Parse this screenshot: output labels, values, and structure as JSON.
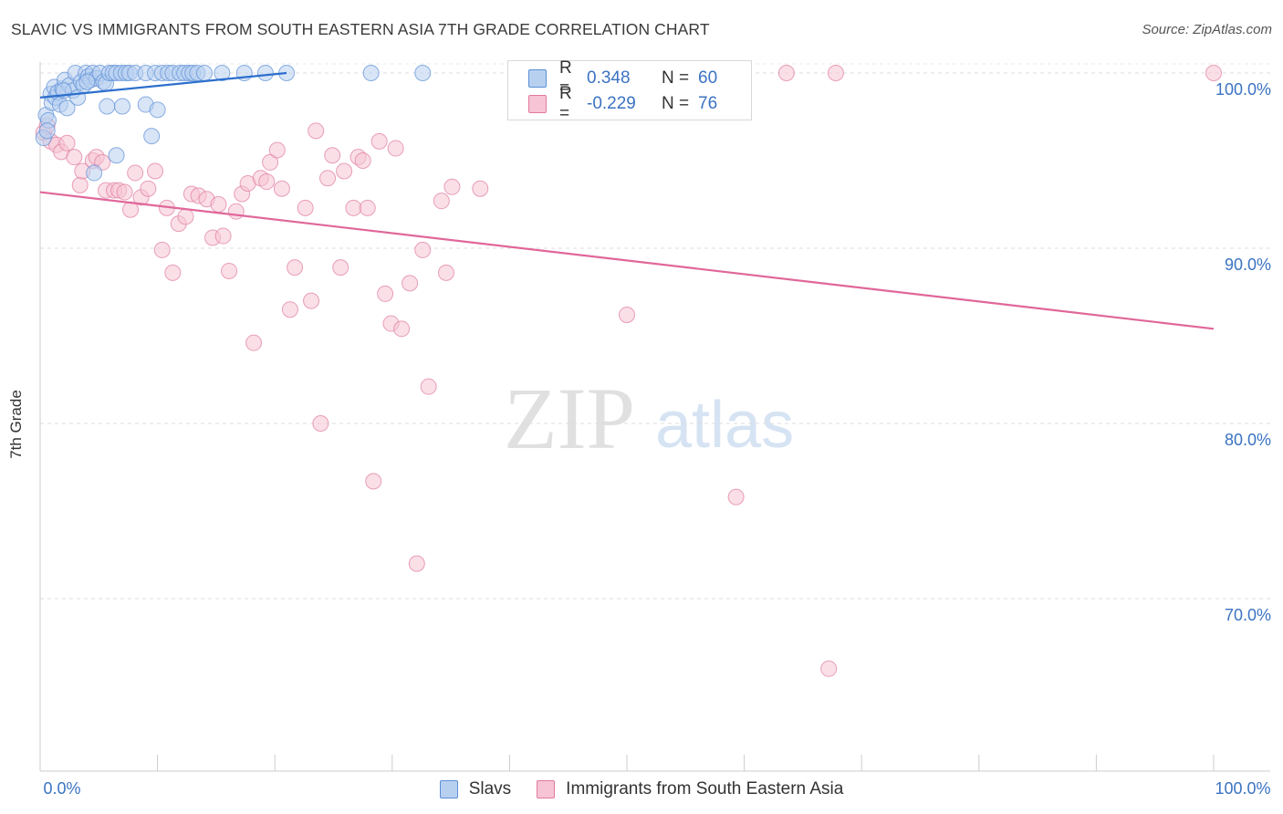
{
  "title": "SLAVIC VS IMMIGRANTS FROM SOUTH EASTERN ASIA 7TH GRADE CORRELATION CHART",
  "source": "Source: ZipAtlas.com",
  "watermark": {
    "zip": "ZIP",
    "atlas": "atlas"
  },
  "colors": {
    "slavs": "#5b8fd6",
    "slavs_fill": "#b8d0f0",
    "immigrants": "#e07aa0",
    "immigrants_fill": "#f6c4d4",
    "value_text": "#3b73c2",
    "grid": "#dddddd"
  },
  "legend_top": [
    {
      "series": "slavs",
      "r_label": "R =",
      "r_value": "0.348",
      "n_label": "N =",
      "n_value": "60"
    },
    {
      "series": "immigrants",
      "r_label": "R =",
      "r_value": "-0.229",
      "n_label": "N =",
      "n_value": "76"
    }
  ],
  "legend_bottom": [
    {
      "series": "slavs",
      "label": "Slavs"
    },
    {
      "series": "immigrants",
      "label": "Immigrants from South Eastern Asia"
    }
  ],
  "chart_data": {
    "type": "scatter",
    "title": "SLAVIC VS IMMIGRANTS FROM SOUTH EASTERN ASIA 7TH GRADE CORRELATION CHART",
    "xlabel": "",
    "ylabel": "7th Grade",
    "xlim": [
      0,
      100
    ],
    "ylim": [
      60.5,
      100.8
    ],
    "x_tick_labels": [
      {
        "value": 0,
        "label": "0.0%"
      },
      {
        "value": 100,
        "label": "100.0%"
      }
    ],
    "y_tick_labels": [
      {
        "value": 100,
        "label": "100.0%"
      },
      {
        "value": 90,
        "label": "90.0%"
      },
      {
        "value": 80,
        "label": "80.0%"
      },
      {
        "value": 70,
        "label": "70.0%"
      }
    ],
    "grid": true,
    "series": [
      {
        "name": "Slavs",
        "key": "slavs",
        "trend": {
          "x": [
            0,
            21
          ],
          "y": [
            98.6,
            100.0
          ]
        },
        "points": [
          [
            0.3,
            96.3
          ],
          [
            0.5,
            97.6
          ],
          [
            0.7,
            97.3
          ],
          [
            0.9,
            98.8
          ],
          [
            1.0,
            98.3
          ],
          [
            1.2,
            99.2
          ],
          [
            1.3,
            98.6
          ],
          [
            1.5,
            98.9
          ],
          [
            1.7,
            98.2
          ],
          [
            1.9,
            99.1
          ],
          [
            2.1,
            99.6
          ],
          [
            2.3,
            98.0
          ],
          [
            2.5,
            99.3
          ],
          [
            2.8,
            99.0
          ],
          [
            3.0,
            100.0
          ],
          [
            3.2,
            98.6
          ],
          [
            3.5,
            99.5
          ],
          [
            3.7,
            99.3
          ],
          [
            3.9,
            100.0
          ],
          [
            4.1,
            99.8
          ],
          [
            4.3,
            99.6
          ],
          [
            4.5,
            100.0
          ],
          [
            4.8,
            99.7
          ],
          [
            5.1,
            100.0
          ],
          [
            5.4,
            99.5
          ],
          [
            5.6,
            99.4
          ],
          [
            5.9,
            100.0
          ],
          [
            6.2,
            100.0
          ],
          [
            6.5,
            100.0
          ],
          [
            6.9,
            100.0
          ],
          [
            7.3,
            100.0
          ],
          [
            7.6,
            100.0
          ],
          [
            8.1,
            100.0
          ],
          [
            9.0,
            100.0
          ],
          [
            9.8,
            100.0
          ],
          [
            10.4,
            100.0
          ],
          [
            10.9,
            100.0
          ],
          [
            11.3,
            100.0
          ],
          [
            11.9,
            100.0
          ],
          [
            12.3,
            100.0
          ],
          [
            12.7,
            100.0
          ],
          [
            13.0,
            100.0
          ],
          [
            13.4,
            100.0
          ],
          [
            14.0,
            100.0
          ],
          [
            15.5,
            100.0
          ],
          [
            17.4,
            100.0
          ],
          [
            19.2,
            100.0
          ],
          [
            21.0,
            100.0
          ],
          [
            28.2,
            100.0
          ],
          [
            32.6,
            100.0
          ],
          [
            5.7,
            98.1
          ],
          [
            7.0,
            98.1
          ],
          [
            9.0,
            98.2
          ],
          [
            10.0,
            97.9
          ],
          [
            9.5,
            96.4
          ],
          [
            6.5,
            95.3
          ],
          [
            4.6,
            94.3
          ],
          [
            0.6,
            96.7
          ],
          [
            2.0,
            99.0
          ],
          [
            4.0,
            99.5
          ]
        ]
      },
      {
        "name": "Immigrants from South Eastern Asia",
        "key": "immigrants",
        "trend": {
          "x": [
            0,
            100
          ],
          "y": [
            93.2,
            85.4
          ]
        },
        "points": [
          [
            0.3,
            96.6
          ],
          [
            0.6,
            97.0
          ],
          [
            0.9,
            96.1
          ],
          [
            1.4,
            95.9
          ],
          [
            1.8,
            95.5
          ],
          [
            2.3,
            96.0
          ],
          [
            2.9,
            95.2
          ],
          [
            3.4,
            93.6
          ],
          [
            3.6,
            94.4
          ],
          [
            4.5,
            95.0
          ],
          [
            4.8,
            95.2
          ],
          [
            5.3,
            94.9
          ],
          [
            5.6,
            93.3
          ],
          [
            6.3,
            93.3
          ],
          [
            6.7,
            93.3
          ],
          [
            7.2,
            93.2
          ],
          [
            7.7,
            92.2
          ],
          [
            8.1,
            94.3
          ],
          [
            8.6,
            92.9
          ],
          [
            9.2,
            93.4
          ],
          [
            9.8,
            94.4
          ],
          [
            10.4,
            89.9
          ],
          [
            10.8,
            92.3
          ],
          [
            11.3,
            88.6
          ],
          [
            11.8,
            91.4
          ],
          [
            12.4,
            91.8
          ],
          [
            12.9,
            93.1
          ],
          [
            13.5,
            93.0
          ],
          [
            14.2,
            92.8
          ],
          [
            14.7,
            90.6
          ],
          [
            15.2,
            92.5
          ],
          [
            15.6,
            90.7
          ],
          [
            16.1,
            88.7
          ],
          [
            16.7,
            92.1
          ],
          [
            17.2,
            93.1
          ],
          [
            17.7,
            93.7
          ],
          [
            18.2,
            84.6
          ],
          [
            18.8,
            94.0
          ],
          [
            19.3,
            93.8
          ],
          [
            19.6,
            94.9
          ],
          [
            20.2,
            95.6
          ],
          [
            20.6,
            93.4
          ],
          [
            21.3,
            86.5
          ],
          [
            21.7,
            88.9
          ],
          [
            22.6,
            92.3
          ],
          [
            23.1,
            87.0
          ],
          [
            23.5,
            96.7
          ],
          [
            23.9,
            80.0
          ],
          [
            24.5,
            94.0
          ],
          [
            24.9,
            95.3
          ],
          [
            25.6,
            88.9
          ],
          [
            25.9,
            94.4
          ],
          [
            26.7,
            92.3
          ],
          [
            27.1,
            95.2
          ],
          [
            27.5,
            95.0
          ],
          [
            27.9,
            92.3
          ],
          [
            28.4,
            76.7
          ],
          [
            28.9,
            96.1
          ],
          [
            29.4,
            87.4
          ],
          [
            29.9,
            85.7
          ],
          [
            30.3,
            95.7
          ],
          [
            30.8,
            85.4
          ],
          [
            31.5,
            88.0
          ],
          [
            32.1,
            72.0
          ],
          [
            32.6,
            89.9
          ],
          [
            33.1,
            82.1
          ],
          [
            34.2,
            92.7
          ],
          [
            34.6,
            88.6
          ],
          [
            35.1,
            93.5
          ],
          [
            37.5,
            93.4
          ],
          [
            50.0,
            86.2
          ],
          [
            59.3,
            75.8
          ],
          [
            63.6,
            100.0
          ],
          [
            67.2,
            66.0
          ],
          [
            67.8,
            100.0
          ],
          [
            100.0,
            100.0
          ]
        ]
      }
    ]
  }
}
